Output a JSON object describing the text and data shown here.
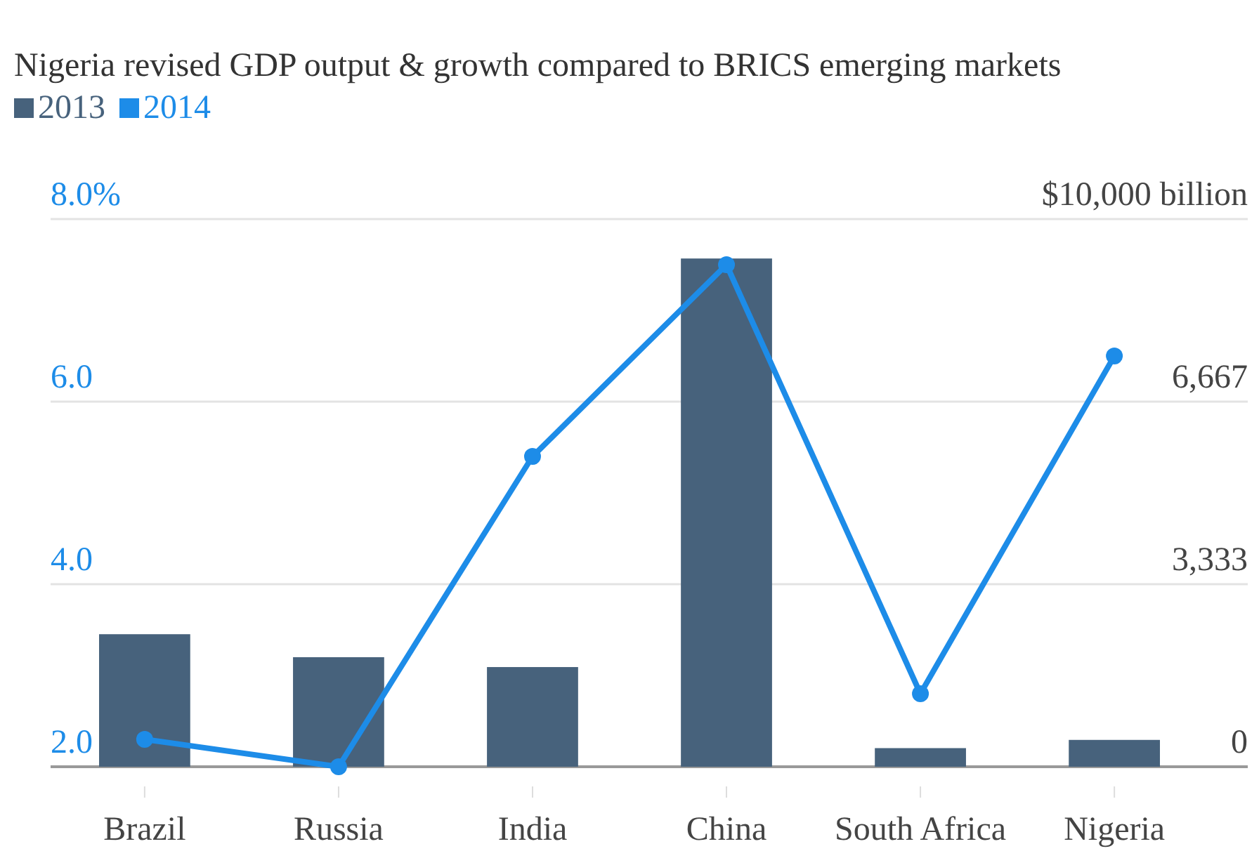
{
  "chart_data": {
    "type": "bar",
    "title": "Nigeria revised GDP output & growth compared to BRICS emerging markets",
    "categories": [
      "Brazil",
      "Russia",
      "India",
      "China",
      "South Africa",
      "Nigeria"
    ],
    "series": [
      {
        "name": "2013",
        "axis": "y2",
        "color": "#47627c",
        "values": [
          2420,
          2000,
          1820,
          9280,
          340,
          490
        ]
      },
      {
        "name": "2014",
        "type": "line",
        "axis": "y",
        "color": "#1d8ce8",
        "values": [
          2.3,
          2.0,
          5.4,
          7.5,
          2.8,
          6.5
        ]
      }
    ],
    "ylim": [
      2,
      8
    ],
    "yticks": [
      {
        "value": 2,
        "label": "2.0"
      },
      {
        "value": 4,
        "label": "4.0"
      },
      {
        "value": 6,
        "label": "6.0"
      },
      {
        "value": 8,
        "label": "8.0%"
      }
    ],
    "y2lim": [
      0,
      10000
    ],
    "y2ticks": [
      {
        "value": 0,
        "label": "0"
      },
      {
        "value": 3333,
        "label": "3,333"
      },
      {
        "value": 6667,
        "label": "6,667"
      },
      {
        "value": 10000,
        "label": "$10,000 billion"
      }
    ],
    "grid": "y",
    "legend": "top left",
    "marker": "circle"
  }
}
